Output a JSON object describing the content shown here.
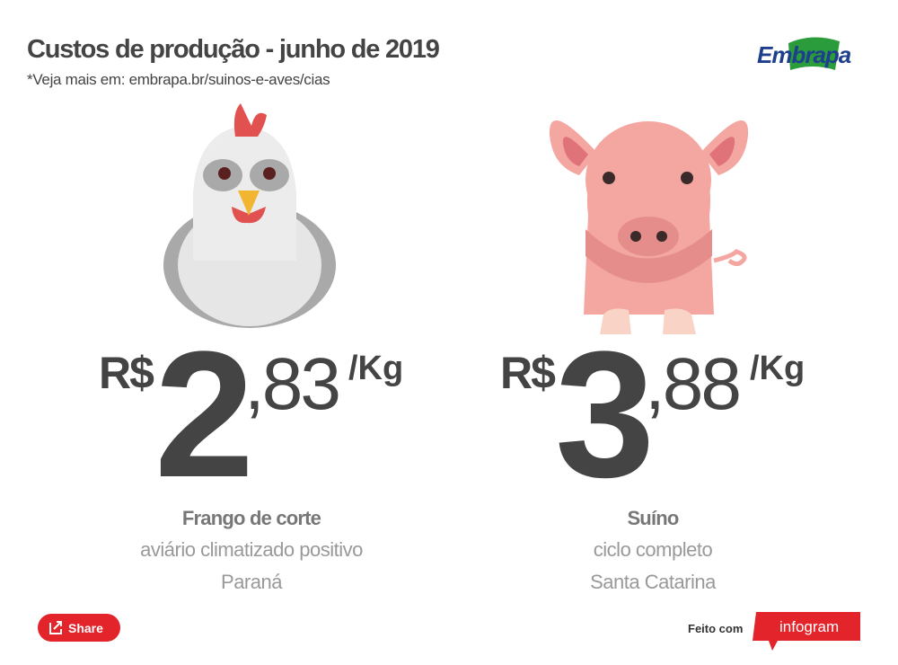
{
  "header": {
    "title": "Custos de produção - junho de 2019",
    "subtitle": "*Veja mais em: embrapa.br/suinos-e-aves/cias",
    "logo": "Embrapa"
  },
  "items": [
    {
      "currency": "R$",
      "integer": "2",
      "decimal": ",83",
      "unit": "/Kg",
      "name": "Frango de corte",
      "detail": "aviário climatizado positivo",
      "region": "Paraná"
    },
    {
      "currency": "R$",
      "integer": "3",
      "decimal": ",88",
      "unit": "/Kg",
      "name": "Suíno",
      "detail": "ciclo completo",
      "region": "Santa Catarina"
    }
  ],
  "footer": {
    "share": "Share",
    "made_with": "Feito com",
    "brand": "infogram"
  }
}
